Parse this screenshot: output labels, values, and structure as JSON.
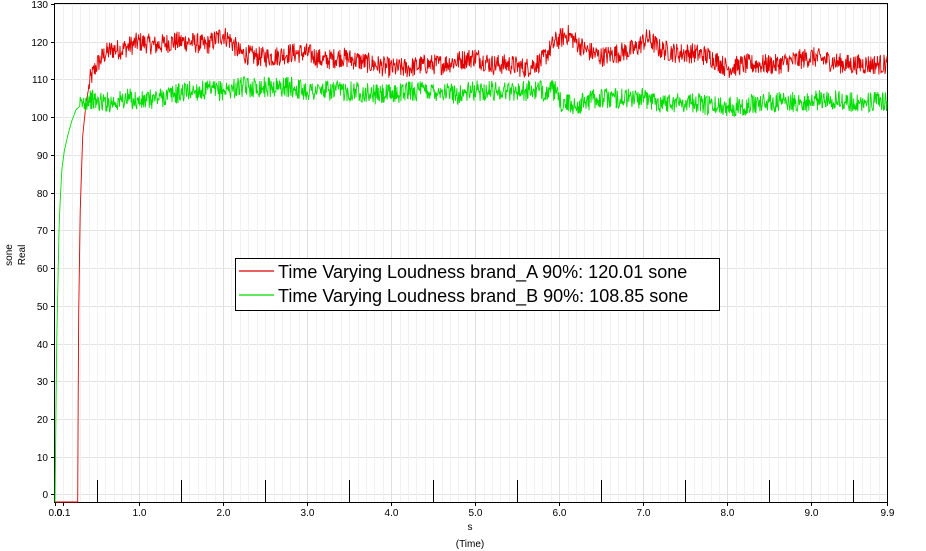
{
  "chart_data": {
    "type": "line",
    "title": "",
    "xlabel": "s",
    "xlabel_sub": "(Time)",
    "ylabel": "sone",
    "ylabel_sub": "Real",
    "xlim": [
      0,
      9.9
    ],
    "ylim": [
      -2,
      130
    ],
    "grid": true,
    "legend_position": "center",
    "x_ticks": [
      "0.0",
      "0.1",
      "1.0",
      "2.0",
      "3.0",
      "4.0",
      "5.0",
      "6.0",
      "7.0",
      "8.0",
      "9.0",
      "9.9"
    ],
    "x_tick_values": [
      0.0,
      0.1,
      1.0,
      2.0,
      3.0,
      4.0,
      5.0,
      6.0,
      7.0,
      8.0,
      9.0,
      9.9
    ],
    "y_ticks": [
      "0",
      "10",
      "20",
      "30",
      "40",
      "50",
      "60",
      "70",
      "80",
      "90",
      "100",
      "110",
      "120",
      "130"
    ],
    "y_tick_values": [
      0,
      10,
      20,
      30,
      40,
      50,
      60,
      70,
      80,
      90,
      100,
      110,
      120,
      130
    ],
    "series": [
      {
        "name": "Time Varying Loudness brand_A 90%: 120.01 sone",
        "color": "#e00000",
        "x": [
          0.0,
          0.27,
          0.28,
          0.3,
          0.33,
          0.37,
          0.42,
          0.5,
          0.6,
          0.7,
          0.8,
          1.0,
          1.2,
          1.4,
          1.6,
          1.8,
          2.0,
          2.1,
          2.2,
          2.4,
          2.6,
          2.8,
          3.0,
          3.2,
          3.4,
          3.6,
          3.8,
          4.0,
          4.2,
          4.4,
          4.6,
          4.8,
          5.0,
          5.2,
          5.4,
          5.6,
          5.8,
          5.95,
          6.1,
          6.3,
          6.5,
          6.7,
          6.9,
          7.05,
          7.2,
          7.4,
          7.6,
          7.8,
          8.0,
          8.2,
          8.4,
          8.6,
          8.8,
          9.0,
          9.2,
          9.4,
          9.6,
          9.8,
          9.9
        ],
        "y": [
          -2,
          -2,
          45,
          75,
          95,
          104,
          110,
          114,
          117,
          118,
          118,
          120,
          119,
          120,
          120,
          119,
          122,
          120,
          117,
          116,
          116,
          117,
          117,
          115,
          116,
          115,
          114,
          113,
          113,
          114,
          114,
          115,
          116,
          114,
          114,
          113,
          115,
          120,
          122,
          118,
          116,
          117,
          118,
          121,
          118,
          117,
          117,
          116,
          113,
          114,
          114,
          114,
          115,
          116,
          115,
          114,
          114,
          114,
          114
        ]
      },
      {
        "name": "Time Varying Loudness brand_B 90%: 108.85 sone",
        "color": "#00dd00",
        "x": [
          0.0,
          0.02,
          0.05,
          0.08,
          0.11,
          0.15,
          0.2,
          0.25,
          0.3,
          0.35,
          0.4,
          0.5,
          0.7,
          0.9,
          1.0,
          1.2,
          1.4,
          1.6,
          1.8,
          2.0,
          2.2,
          2.4,
          2.6,
          2.8,
          3.0,
          3.2,
          3.4,
          3.6,
          3.8,
          4.0,
          4.2,
          4.4,
          4.6,
          4.8,
          5.0,
          5.2,
          5.4,
          5.6,
          5.8,
          5.95,
          6.0,
          6.2,
          6.4,
          6.6,
          6.8,
          7.0,
          7.2,
          7.4,
          7.6,
          7.8,
          8.0,
          8.2,
          8.4,
          8.6,
          8.8,
          9.0,
          9.2,
          9.4,
          9.6,
          9.8,
          9.9
        ],
        "y": [
          -2,
          40,
          72,
          86,
          91,
          95,
          99,
          102,
          103,
          104,
          105,
          104,
          104,
          105,
          104,
          105,
          106,
          107,
          107,
          107,
          108,
          108,
          108,
          108,
          107,
          107,
          107,
          107,
          106,
          106,
          107,
          107,
          107,
          106,
          107,
          107,
          107,
          107,
          107,
          107,
          104,
          103,
          105,
          105,
          105,
          105,
          104,
          104,
          104,
          103,
          103,
          103,
          104,
          104,
          104,
          104,
          105,
          104,
          104,
          104,
          104
        ]
      }
    ]
  }
}
